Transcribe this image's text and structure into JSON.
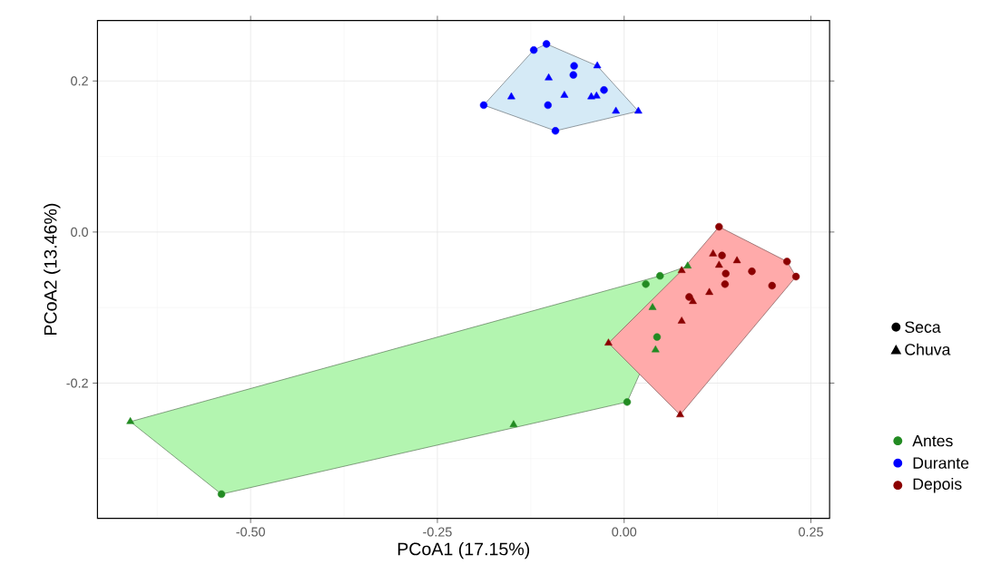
{
  "chart_data": {
    "type": "scatter",
    "xlabel": "PCoA1 (17.15%)",
    "ylabel": "PCoA2 (13.46%)",
    "xlim": [
      -0.705,
      0.275
    ],
    "ylim": [
      -0.379,
      0.28
    ],
    "xticks": [
      {
        "value": -0.5,
        "label": "-0.50"
      },
      {
        "value": -0.25,
        "label": "-0.25"
      },
      {
        "value": 0,
        "label": "0.00"
      },
      {
        "value": 0.25,
        "label": "0.25"
      }
    ],
    "yticks": [
      {
        "value": -0.2,
        "label": "-0.2"
      },
      {
        "value": 0,
        "label": "0.0"
      },
      {
        "value": 0.2,
        "label": "0.2"
      }
    ],
    "grid": true,
    "legend": "right",
    "annotations": [
      "Seca",
      "Chuva"
    ],
    "series": [
      {
        "type": "area",
        "color": "#b3f5b0",
        "x": [
          -0.661,
          -0.539,
          0.004,
          0.085,
          0.048
        ],
        "values": [
          -0.251,
          -0.347,
          -0.225,
          -0.045,
          -0.058
        ]
      },
      {
        "type": "area",
        "color": "#d5eaf6",
        "x": [
          -0.188,
          -0.121,
          -0.104,
          -0.036,
          0.019,
          -0.092
        ],
        "values": [
          0.168,
          0.241,
          0.249,
          0.22,
          0.16,
          0.134
        ]
      },
      {
        "type": "area",
        "color": "#ffaaaa",
        "x": [
          -0.021,
          0.077,
          0.127,
          0.218,
          0.23,
          0.075
        ],
        "values": [
          -0.147,
          -0.051,
          0.007,
          -0.039,
          -0.059,
          -0.242
        ]
      },
      {
        "name": "Antes",
        "color": "#228b22",
        "marker": "circle",
        "x": [
          0.029,
          0.048,
          0.044,
          0.004,
          -0.539
        ],
        "values": [
          -0.069,
          -0.058,
          -0.139,
          -0.225,
          -0.347
        ]
      },
      {
        "name": "Durante",
        "color": "#0000ff",
        "marker": "circle",
        "x": [
          -0.121,
          -0.104,
          -0.067,
          -0.068,
          -0.027,
          -0.102,
          -0.188,
          -0.092
        ],
        "values": [
          0.241,
          0.249,
          0.22,
          0.208,
          0.188,
          0.168,
          0.168,
          0.134
        ]
      },
      {
        "name": "Depois",
        "color": "#8b0000",
        "marker": "circle",
        "x": [
          0.127,
          0.131,
          0.136,
          0.135,
          0.171,
          0.218,
          0.23,
          0.198,
          0.087
        ],
        "values": [
          0.007,
          -0.031,
          -0.055,
          -0.069,
          -0.052,
          -0.039,
          -0.059,
          -0.071,
          -0.086
        ]
      },
      {
        "color": "#228b22",
        "marker": "triangle",
        "x": [
          0.085,
          0.038,
          0.042,
          -0.661,
          -0.148
        ],
        "values": [
          -0.045,
          -0.1,
          -0.156,
          -0.251,
          -0.255
        ]
      },
      {
        "color": "#0000ff",
        "marker": "triangle",
        "x": [
          -0.036,
          -0.101,
          -0.151,
          -0.08,
          -0.044,
          -0.037,
          -0.011,
          0.019
        ],
        "values": [
          0.22,
          0.204,
          0.179,
          0.181,
          0.179,
          0.18,
          0.16,
          0.16
        ]
      },
      {
        "color": "#8b0000",
        "marker": "triangle",
        "x": [
          0.119,
          0.127,
          0.151,
          0.114,
          0.092,
          0.077,
          0.075,
          0.077,
          -0.021
        ],
        "values": [
          -0.029,
          -0.044,
          -0.038,
          -0.08,
          -0.092,
          -0.118,
          -0.242,
          -0.051,
          -0.147
        ]
      }
    ]
  }
}
